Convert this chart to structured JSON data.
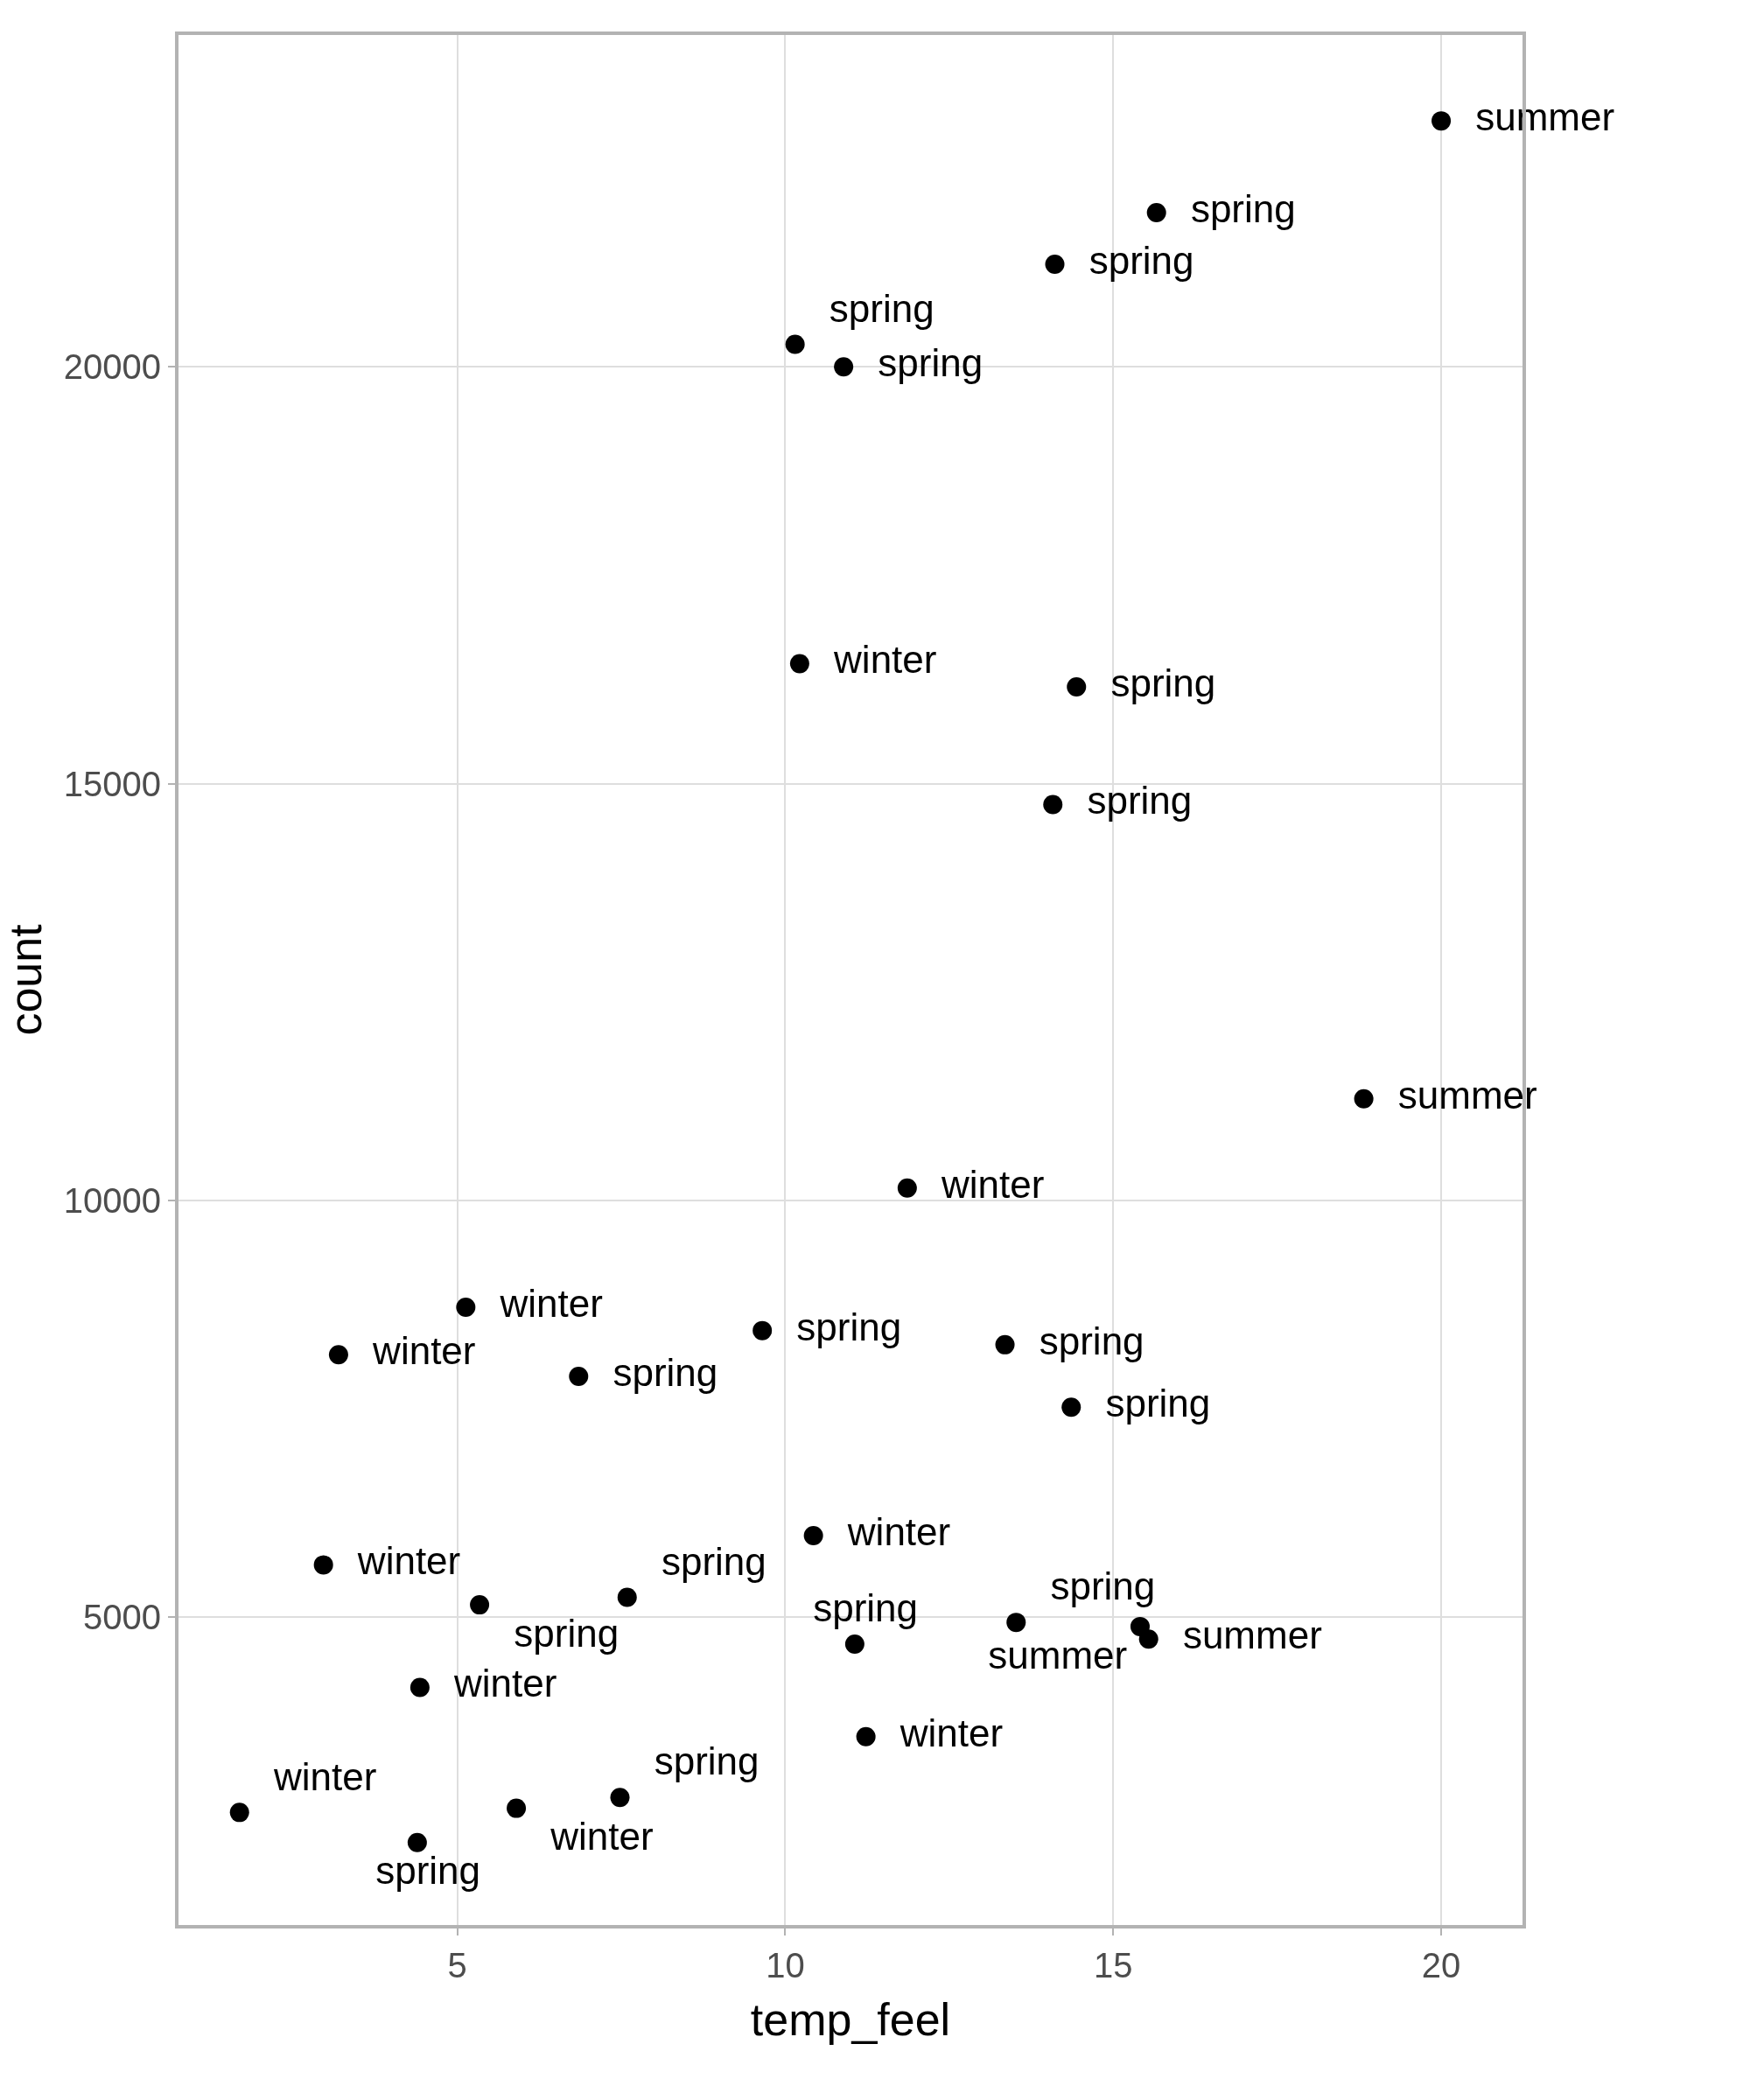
{
  "chart_data": {
    "type": "scatter",
    "xlabel": "temp_feel",
    "ylabel": "count",
    "x": [
      20.0,
      15.66,
      14.11,
      10.15,
      10.89,
      10.22,
      14.44,
      14.08,
      18.82,
      11.86,
      5.13,
      3.19,
      9.65,
      6.85,
      13.35,
      14.36,
      10.43,
      2.96,
      5.34,
      7.59,
      13.52,
      15.41,
      15.54,
      11.06,
      4.43,
      11.23,
      1.68,
      5.9,
      7.48,
      4.39
    ],
    "values": [
      22950,
      21850,
      21230,
      20270,
      20000,
      16440,
      16160,
      14750,
      11220,
      10150,
      8720,
      8150,
      8440,
      7890,
      8270,
      7520,
      5980,
      5630,
      5150,
      5240,
      4940,
      4890,
      4740,
      4680,
      4160,
      3570,
      2660,
      2710,
      2840,
      2300
    ],
    "value_labels": [
      "summer",
      "spring",
      "spring",
      "spring",
      "spring",
      "winter",
      "spring",
      "spring",
      "summer",
      "winter",
      "winter",
      "winter",
      "spring",
      "spring",
      "spring",
      "spring",
      "winter",
      "winter",
      "spring",
      "spring",
      "spring",
      "summer",
      "summer",
      "spring",
      "winter",
      "winter",
      "winter",
      "winter",
      "spring",
      "spring"
    ],
    "color": "#000000",
    "marker": "circle",
    "grid": true,
    "xlim": [
      0.75,
      21.24
    ],
    "xticks": [
      5,
      10,
      15,
      20
    ],
    "ylim": [
      1310,
      23980
    ],
    "yticks": [
      5000,
      10000,
      15000,
      20000
    ]
  }
}
